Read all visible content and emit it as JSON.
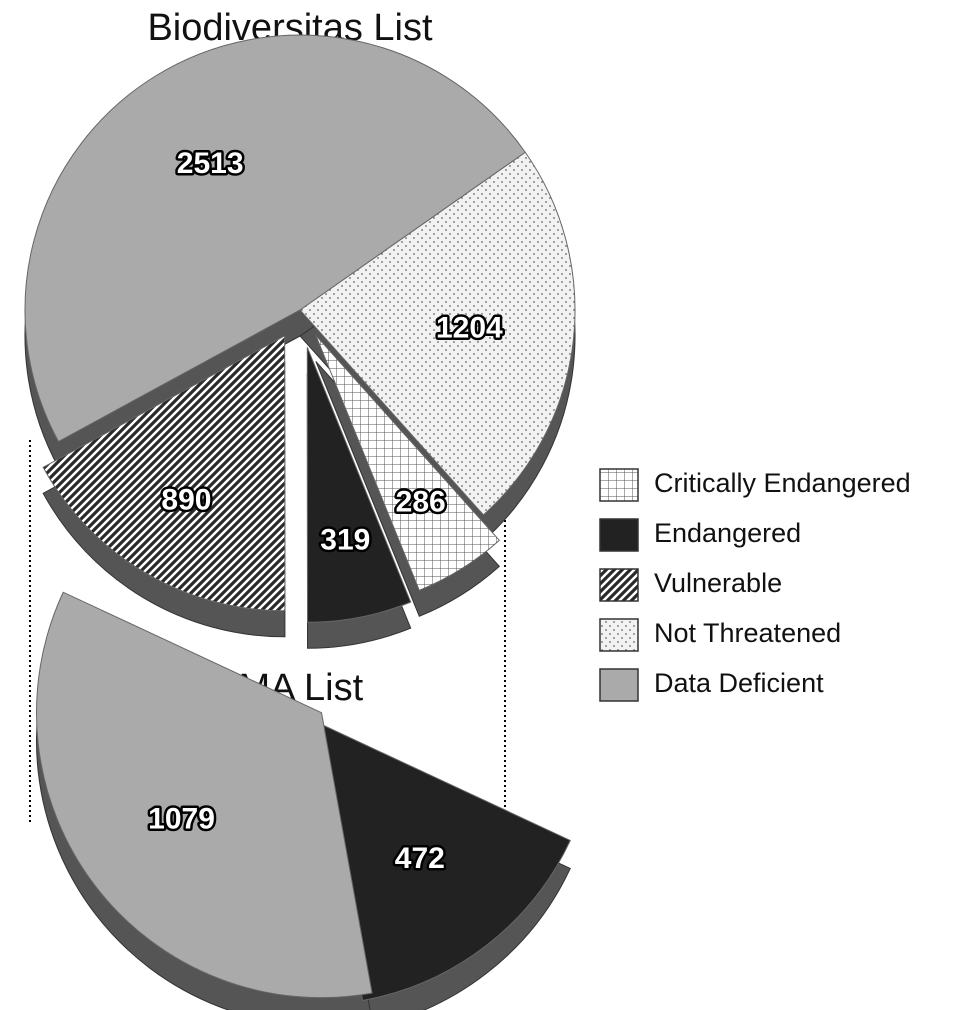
{
  "chart_data": [
    {
      "type": "pie",
      "title": "Biodiversitas List",
      "categories": [
        "Critically Endangered",
        "Endangered",
        "Vulnerable",
        "Not Threatened",
        "Data Deficient"
      ],
      "values": [
        286,
        319,
        890,
        1204,
        2513
      ],
      "colors": [
        "#ffffff",
        "#222222",
        "#2a2a2a",
        "#f2f2f2",
        "#aaaaaa"
      ],
      "patterns": [
        "grid",
        "solid",
        "stripes",
        "dots",
        "solid"
      ],
      "legend": "right"
    },
    {
      "type": "pie",
      "title": "MMA List",
      "values": [
        1079,
        472
      ],
      "colors": [
        "#aaaaaa",
        "#222222"
      ],
      "patterns": [
        "solid",
        "solid"
      ]
    }
  ]
}
